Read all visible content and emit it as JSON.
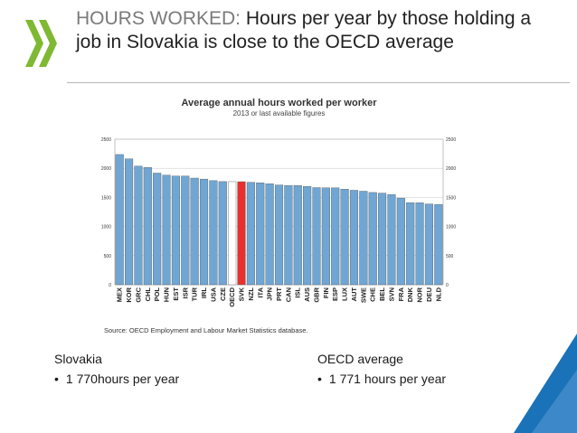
{
  "header": {
    "title_accent": "HOURS WORKED:",
    "title_rest": "Hours per year by those holding a job in Slovakia is close to the OECD average"
  },
  "chart_data": {
    "type": "bar",
    "title": "Average annual hours worked per worker",
    "subtitle": "2013 or last available figures",
    "categories": [
      "MEX",
      "KOR",
      "GRC",
      "CHL",
      "POL",
      "HUN",
      "EST",
      "ISR",
      "TUR",
      "IRL",
      "USA",
      "CZE",
      "OECD",
      "SVK",
      "NZL",
      "ITA",
      "JPN",
      "PRT",
      "CAN",
      "ISL",
      "AUS",
      "GBR",
      "FIN",
      "ESP",
      "LUX",
      "AUT",
      "SWE",
      "CHE",
      "BEL",
      "SVN",
      "FRA",
      "DNK",
      "NOR",
      "DEU",
      "NLD"
    ],
    "values": [
      2237,
      2163,
      2037,
      2015,
      1918,
      1883,
      1868,
      1867,
      1832,
      1815,
      1788,
      1772,
      1771,
      1770,
      1760,
      1752,
      1735,
      1714,
      1706,
      1704,
      1689,
      1669,
      1666,
      1665,
      1643,
      1623,
      1607,
      1585,
      1574,
      1550,
      1489,
      1411,
      1408,
      1388,
      1380
    ],
    "highlight": {
      "SVK": "#e8312f",
      "OECD": "#ffffff"
    },
    "bar_color": "#6fa6d4",
    "ylim": [
      0,
      2500
    ],
    "yticks": [
      "0",
      "500",
      "1000",
      "1500",
      "2000",
      "2500"
    ],
    "grid": true,
    "source": "Source: OECD Employment and Labour Market Statistics database."
  },
  "notes": {
    "left": {
      "heading": "Slovakia",
      "item": "1 770hours per year"
    },
    "right": {
      "heading": "OECD average",
      "item": "1 771 hours per year"
    }
  },
  "colors": {
    "logo_green": "#7fb832",
    "corner_blue": "#1a72b8"
  }
}
